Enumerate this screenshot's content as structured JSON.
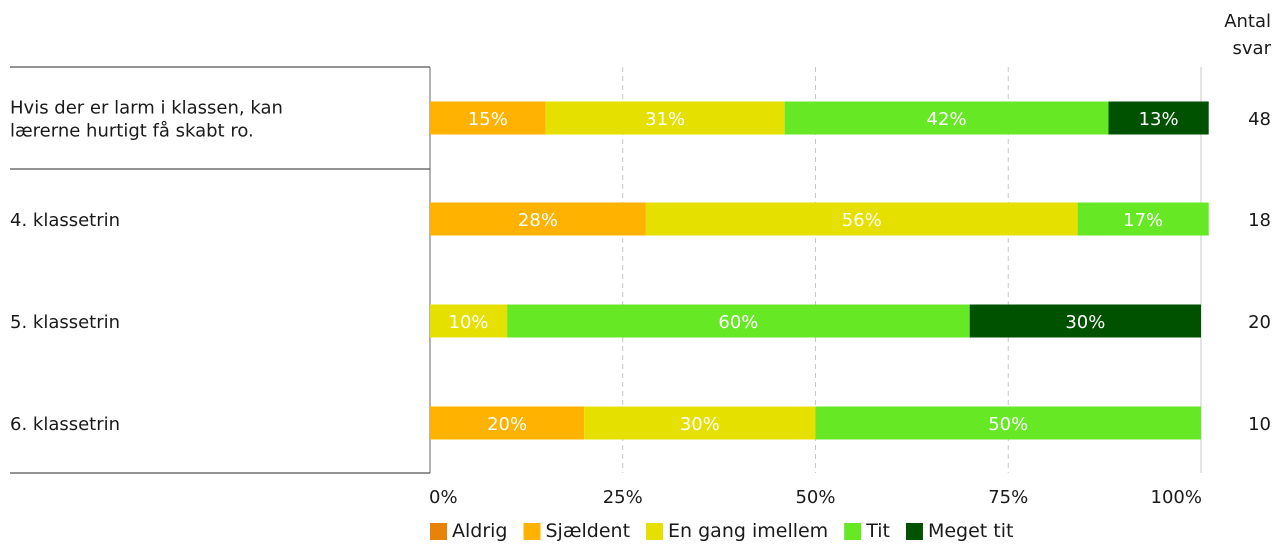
{
  "chart_data": {
    "type": "bar",
    "orientation": "horizontal",
    "stacked": true,
    "value_unit": "percent",
    "xlim": [
      0,
      100
    ],
    "xticks": [
      "0%",
      "25%",
      "50%",
      "75%",
      "100%"
    ],
    "grid": true,
    "legend_position": "bottom",
    "count_header": [
      "Antal",
      "svar"
    ],
    "categories": [
      {
        "label": [
          "Hvis der er larm i klassen, kan",
          "lærerne hurtigt få skabt ro."
        ],
        "count": "48"
      },
      {
        "label": [
          "4. klassetrin"
        ],
        "count": "18"
      },
      {
        "label": [
          "5. klassetrin"
        ],
        "count": "20"
      },
      {
        "label": [
          "6. klassetrin"
        ],
        "count": "10"
      }
    ],
    "series": [
      {
        "name": "Aldrig",
        "color": "#e8830a",
        "values": [
          0,
          0,
          0,
          0
        ]
      },
      {
        "name": "Sjældent",
        "color": "#ffb200",
        "values": [
          15,
          28,
          0,
          20
        ]
      },
      {
        "name": "En gang imellem",
        "color": "#e6e000",
        "values": [
          31,
          56,
          10,
          30
        ]
      },
      {
        "name": "Tit",
        "color": "#66e825",
        "values": [
          42,
          17,
          60,
          50
        ]
      },
      {
        "name": "Meget tit",
        "color": "#005200",
        "values": [
          13,
          0,
          30,
          0
        ]
      }
    ]
  }
}
